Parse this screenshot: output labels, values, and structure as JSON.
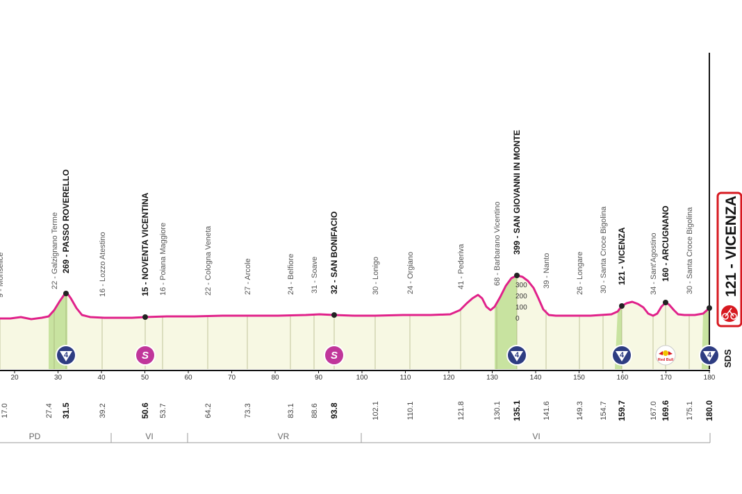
{
  "colors": {
    "profile_line": "#e0218a",
    "profile_fill": "#f7f8e3",
    "climb_fill": "#c8e3a0",
    "sprint": "#c0369a",
    "gpm": "#2e3d82",
    "finish_red": "#d71920"
  },
  "finish": {
    "text": "121 - VICENZA",
    "icon": "finish-cyclist-icon"
  },
  "sds_label": "SDS",
  "axis_ticks": [
    "20",
    "30",
    "40",
    "50",
    "60",
    "70",
    "80",
    "90",
    "100",
    "110",
    "120",
    "130",
    "140",
    "150",
    "160",
    "170",
    "180"
  ],
  "places": [
    {
      "text": "9 - Monselice",
      "bold": false
    },
    {
      "text": "22 - Galzignano Terme",
      "bold": false
    },
    {
      "text": "269 - PASSO ROVERELLO",
      "bold": true
    },
    {
      "text": "16 - Lozzo Atestino",
      "bold": false
    },
    {
      "text": "15 - NOVENTA VICENTINA",
      "bold": true
    },
    {
      "text": "16 - Poiana Maggiore",
      "bold": false
    },
    {
      "text": "22 - Cologna Veneta",
      "bold": false
    },
    {
      "text": "27 - Arcole",
      "bold": false
    },
    {
      "text": "24 - Belfiore",
      "bold": false
    },
    {
      "text": "31 - Soave",
      "bold": false
    },
    {
      "text": "32 - SAN BONIFACIO",
      "bold": true
    },
    {
      "text": "30 - Lonigo",
      "bold": false
    },
    {
      "text": "24 - Orgiano",
      "bold": false
    },
    {
      "text": "41 - Pederiva",
      "bold": false
    },
    {
      "text": "68 - Barbarano Vicentino",
      "bold": false
    },
    {
      "text": "399 - SAN GIOVANNI IN MONTE",
      "bold": true
    },
    {
      "text": "39 - Nanto",
      "bold": false
    },
    {
      "text": "26 - Longare",
      "bold": false
    },
    {
      "text": "30 - Santa Croce Bigolina",
      "bold": false
    },
    {
      "text": "121 - VICENZA",
      "bold": true
    },
    {
      "text": "34 - Sant'Agostino",
      "bold": false
    },
    {
      "text": "160 - ARCUGNANO",
      "bold": true
    },
    {
      "text": "30 - Santa Croce Bigolina",
      "bold": false
    }
  ],
  "distances": [
    {
      "text": "17.0",
      "bold": false
    },
    {
      "text": "27.4",
      "bold": false
    },
    {
      "text": "31.5",
      "bold": true
    },
    {
      "text": "39.2",
      "bold": false
    },
    {
      "text": "50.6",
      "bold": true
    },
    {
      "text": "53.7",
      "bold": false
    },
    {
      "text": "64.2",
      "bold": false
    },
    {
      "text": "73.3",
      "bold": false
    },
    {
      "text": "83.1",
      "bold": false
    },
    {
      "text": "88.6",
      "bold": false
    },
    {
      "text": "93.8",
      "bold": true
    },
    {
      "text": "102.1",
      "bold": false
    },
    {
      "text": "110.1",
      "bold": false
    },
    {
      "text": "121.8",
      "bold": false
    },
    {
      "text": "130.1",
      "bold": false
    },
    {
      "text": "135.1",
      "bold": true
    },
    {
      "text": "141.6",
      "bold": false
    },
    {
      "text": "149.3",
      "bold": false
    },
    {
      "text": "154.7",
      "bold": false
    },
    {
      "text": "159.7",
      "bold": true
    },
    {
      "text": "167.0",
      "bold": false
    },
    {
      "text": "169.6",
      "bold": true
    },
    {
      "text": "175.1",
      "bold": false
    },
    {
      "text": "180.0",
      "bold": true
    }
  ],
  "markers": [
    {
      "type": "gpm",
      "text": "4"
    },
    {
      "type": "sprint",
      "text": "S"
    },
    {
      "type": "sprint",
      "text": "S"
    },
    {
      "type": "gpm",
      "text": "4"
    },
    {
      "type": "gpm",
      "text": "4"
    },
    {
      "type": "redbull",
      "text": "Red Bull"
    },
    {
      "type": "gpm",
      "text": "4"
    }
  ],
  "altitude_scale": [
    "300",
    "200",
    "100",
    "0"
  ],
  "provinces": [
    "PD",
    "VI",
    "VR",
    "VI"
  ]
}
